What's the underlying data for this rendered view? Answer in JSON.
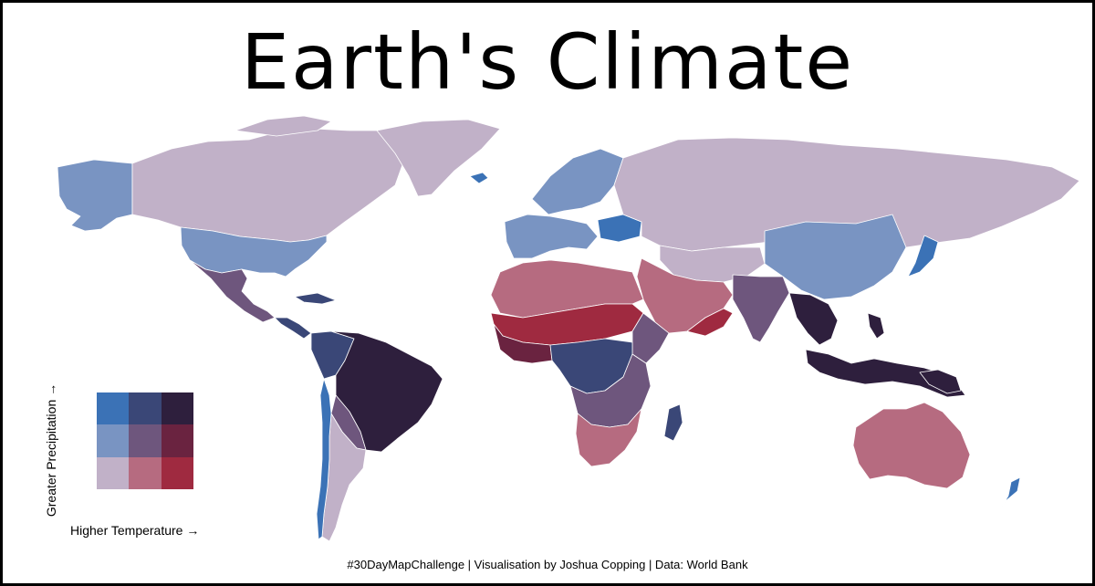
{
  "title": "Earth's Climate",
  "legend": {
    "y_label": "Greater Precipitation →",
    "x_label": "Higher Temperature →",
    "cells": [
      [
        "#3b72b6",
        "#3a4777",
        "#2e1f3d"
      ],
      [
        "#7994c2",
        "#6e567d",
        "#6a2340"
      ],
      [
        "#c1b1c8",
        "#b66b80",
        "#9f2a40"
      ]
    ]
  },
  "caption": "#30DayMapChallenge | Visualisation by Joshua Copping | Data: World Bank",
  "colors": {
    "cold_dry": "#c1b1c8",
    "cool_mid": "#7994c2",
    "cold_wet": "#3b72b6",
    "mild_mid": "#6e567d",
    "mild_wet": "#3a4777",
    "hot_dry": "#9f2a40",
    "warm_dry": "#b66b80",
    "hot_mid": "#6a2340",
    "hot_wet": "#2e1f3d"
  }
}
